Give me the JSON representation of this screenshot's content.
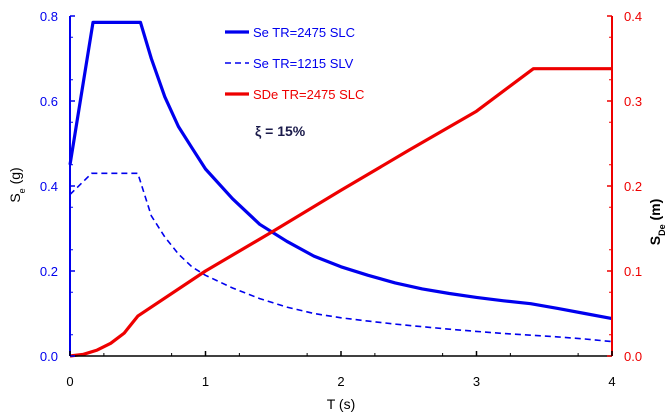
{
  "colors": {
    "left_axis": "#0000ee",
    "right_axis": "#ee0000",
    "text": "#000000"
  },
  "chart_data": {
    "type": "line",
    "xlabel": "T (s)",
    "ylabel_left": {
      "main": "S",
      "sub": "e",
      "unit": " (g)"
    },
    "ylabel_right": {
      "main": "S",
      "sub": "De",
      "unit": " (m)"
    },
    "xlim": [
      0,
      4
    ],
    "ylim_left": [
      0,
      0.8
    ],
    "ylim_right": [
      0,
      0.4
    ],
    "x_ticks": [
      "0",
      "1",
      "2",
      "3",
      "4"
    ],
    "y_left_ticks": [
      "0.0",
      "0.2",
      "0.4",
      "0.6",
      "0.8"
    ],
    "y_right_ticks": [
      "0.0",
      "0.1",
      "0.2",
      "0.3",
      "0.4"
    ],
    "annotation": "ξ = 15%",
    "legend_position": "top-center",
    "series": [
      {
        "name": "Se TR=2475 SLC",
        "axis": "left",
        "color": "#0000ee",
        "style": "solid",
        "x": [
          0,
          0.17,
          0.52,
          0.6,
          0.7,
          0.8,
          0.9,
          1.0,
          1.2,
          1.4,
          1.6,
          1.8,
          2.0,
          2.2,
          2.4,
          2.6,
          2.8,
          3.0,
          3.2,
          3.4,
          3.6,
          3.8,
          4.0
        ],
        "values": [
          0.45,
          0.785,
          0.785,
          0.7,
          0.61,
          0.54,
          0.49,
          0.44,
          0.37,
          0.31,
          0.27,
          0.235,
          0.21,
          0.19,
          0.172,
          0.158,
          0.147,
          0.138,
          0.13,
          0.123,
          0.112,
          0.1,
          0.088
        ]
      },
      {
        "name": "Se TR=1215 SLV",
        "axis": "left",
        "color": "#0000ee",
        "style": "dashed",
        "x": [
          0,
          0.16,
          0.5,
          0.6,
          0.7,
          0.8,
          0.9,
          1.0,
          1.2,
          1.4,
          1.6,
          1.8,
          2.0,
          2.2,
          2.4,
          2.6,
          2.8,
          3.0,
          3.2,
          3.4,
          3.6,
          3.8,
          4.0
        ],
        "values": [
          0.38,
          0.43,
          0.43,
          0.33,
          0.28,
          0.24,
          0.21,
          0.19,
          0.16,
          0.135,
          0.115,
          0.1,
          0.09,
          0.082,
          0.075,
          0.069,
          0.063,
          0.058,
          0.053,
          0.049,
          0.045,
          0.04,
          0.034
        ]
      },
      {
        "name": "SDe TR=2475 SLC",
        "axis": "right",
        "color": "#ee0000",
        "style": "solid",
        "x": [
          0,
          0.1,
          0.2,
          0.3,
          0.4,
          0.5,
          1.0,
          1.5,
          2.0,
          2.5,
          3.0,
          3.42,
          3.6,
          4.0
        ],
        "values": [
          0,
          0.002,
          0.007,
          0.015,
          0.027,
          0.047,
          0.1,
          0.147,
          0.195,
          0.242,
          0.288,
          0.338,
          0.338,
          0.338
        ]
      }
    ]
  }
}
